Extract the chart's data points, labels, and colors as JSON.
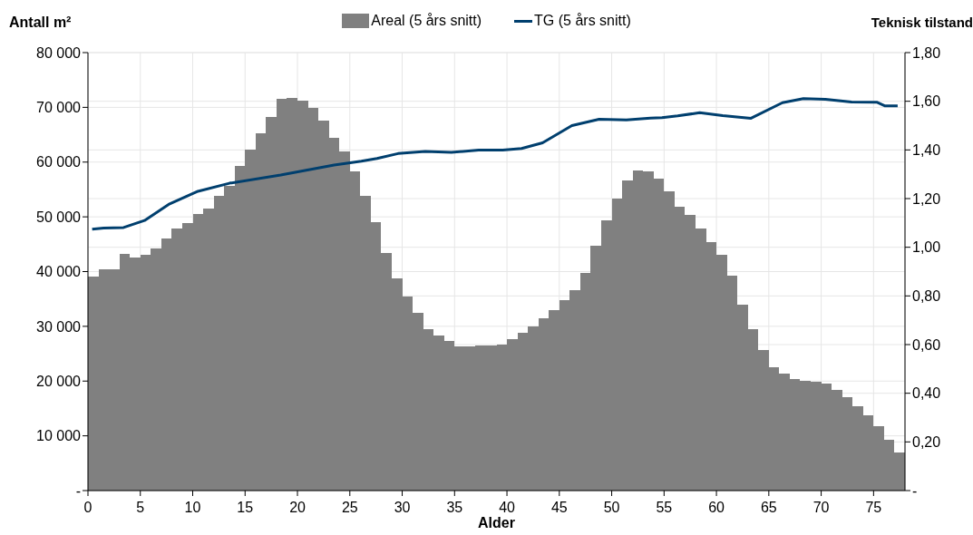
{
  "chart_data": {
    "type": "histogram",
    "xlabel": "Alder",
    "ylabel": "Antall m²",
    "y2label": "Teknisk tilstand",
    "legend": "top",
    "grid": true,
    "bins": [
      0,
      1,
      2,
      3,
      4,
      5,
      6,
      7,
      8,
      9,
      10,
      11,
      12,
      13,
      14,
      15,
      16,
      17,
      18,
      19,
      20,
      21,
      22,
      23,
      24,
      25,
      26,
      27,
      28,
      29,
      30,
      31,
      32,
      33,
      34,
      35,
      36,
      37,
      38,
      39,
      40,
      41,
      42,
      43,
      44,
      45,
      46,
      47,
      48,
      49,
      50,
      51,
      52,
      53,
      54,
      55,
      56,
      57,
      58,
      59,
      60,
      61,
      62,
      63,
      64,
      65,
      66,
      67,
      68,
      69,
      70,
      71,
      72,
      73,
      74,
      75,
      76,
      77,
      78
    ],
    "series": [
      {
        "type": "histogram",
        "name": "Areal (5 års snitt)",
        "color": "#808080",
        "values": [
          39100,
          40400,
          40400,
          43300,
          42500,
          43000,
          44300,
          46100,
          47800,
          48800,
          50500,
          51500,
          53800,
          55700,
          59300,
          62300,
          65300,
          68300,
          71500,
          71700,
          71200,
          69900,
          67500,
          64500,
          61900,
          58300,
          53800,
          49100,
          43400,
          38800,
          35500,
          32400,
          29400,
          28300,
          27300,
          26300,
          26300,
          26500,
          26500,
          26700,
          27700,
          28900,
          30000,
          31500,
          33000,
          34700,
          36600,
          39800,
          44700,
          49300,
          53300,
          56600,
          58500,
          58300,
          57000,
          54600,
          51900,
          50300,
          47900,
          45400,
          43000,
          39200,
          34000,
          29400,
          25600,
          22600,
          21400,
          20400,
          20000,
          19800,
          19500,
          18400,
          17000,
          15400,
          13700,
          11800,
          9300,
          6900
        ]
      },
      {
        "type": "line",
        "name": "TG (5 års snitt)",
        "color": "#003f6e",
        "axis": "y2",
        "marker": "none",
        "line_style": "solid",
        "x": [
          0.4,
          1.5,
          3.4,
          5.4,
          7.7,
          10.5,
          13.5,
          18.4,
          23.5,
          26.1,
          27.6,
          29.6,
          32.2,
          34.7,
          37.3,
          39.6,
          41.4,
          43.4,
          46.2,
          48.8,
          51.4,
          53.7,
          54.8,
          56.3,
          58.4,
          60.6,
          63.3,
          66.3,
          68.3,
          70.4,
          72.9,
          75.3,
          76.1,
          77.3
        ],
        "values": [
          1.074,
          1.079,
          1.081,
          1.11,
          1.176,
          1.23,
          1.263,
          1.297,
          1.338,
          1.354,
          1.365,
          1.385,
          1.394,
          1.39,
          1.399,
          1.399,
          1.406,
          1.429,
          1.5,
          1.526,
          1.523,
          1.531,
          1.533,
          1.54,
          1.553,
          1.541,
          1.53,
          1.594,
          1.611,
          1.608,
          1.597,
          1.596,
          1.581,
          1.581
        ]
      }
    ],
    "xlim": [
      0,
      78
    ],
    "xticks": [
      0,
      5,
      10,
      15,
      20,
      25,
      30,
      35,
      40,
      45,
      50,
      55,
      60,
      65,
      70,
      75
    ],
    "ylim": [
      0,
      80000
    ],
    "yticks": [
      {
        "value": 0,
        "label": "-"
      },
      {
        "value": 10000,
        "label": "10 000"
      },
      {
        "value": 20000,
        "label": "20 000"
      },
      {
        "value": 30000,
        "label": "30 000"
      },
      {
        "value": 40000,
        "label": "40 000"
      },
      {
        "value": 50000,
        "label": "50 000"
      },
      {
        "value": 60000,
        "label": "60 000"
      },
      {
        "value": 70000,
        "label": "70 000"
      },
      {
        "value": 80000,
        "label": "80 000"
      }
    ],
    "y2lim": [
      0,
      1.8
    ],
    "y2ticks": [
      {
        "value": 0,
        "label": "-"
      },
      {
        "value": 0.2,
        "label": "0,20"
      },
      {
        "value": 0.4,
        "label": "0,40"
      },
      {
        "value": 0.6,
        "label": "0,60"
      },
      {
        "value": 0.8,
        "label": "0,80"
      },
      {
        "value": 1,
        "label": "1,00"
      },
      {
        "value": 1.2,
        "label": "1,20"
      },
      {
        "value": 1.4,
        "label": "1,40"
      },
      {
        "value": 1.6,
        "label": "1,60"
      },
      {
        "value": 1.8,
        "label": "1,80"
      }
    ]
  }
}
